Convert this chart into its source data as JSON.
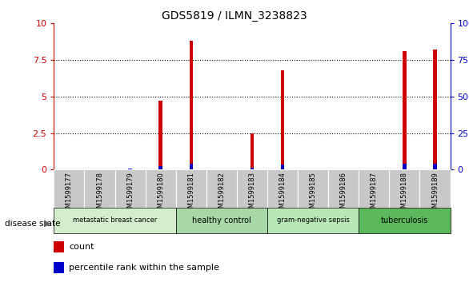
{
  "title": "GDS5819 / ILMN_3238823",
  "samples": [
    "GSM1599177",
    "GSM1599178",
    "GSM1599179",
    "GSM1599180",
    "GSM1599181",
    "GSM1599182",
    "GSM1599183",
    "GSM1599184",
    "GSM1599185",
    "GSM1599186",
    "GSM1599187",
    "GSM1599188",
    "GSM1599189"
  ],
  "count_values": [
    0.0,
    0.0,
    0.0,
    4.7,
    8.8,
    0.0,
    2.5,
    6.8,
    0.0,
    0.0,
    0.0,
    8.1,
    8.2
  ],
  "percentile_values": [
    0.0,
    0.45,
    0.5,
    2.5,
    4.0,
    0.0,
    1.35,
    3.25,
    0.0,
    0.2,
    0.0,
    3.8,
    3.9
  ],
  "bar_color": "#cc0000",
  "percentile_color": "#0000cc",
  "ylim_left": [
    0,
    10
  ],
  "ylim_right": [
    0,
    100
  ],
  "yticks_left": [
    0,
    2.5,
    5,
    7.5,
    10
  ],
  "ytick_labels_left": [
    "0",
    "2.5",
    "5",
    "7.5",
    "10"
  ],
  "yticks_right": [
    0,
    25,
    50,
    75,
    100
  ],
  "ytick_labels_right": [
    "0",
    "25",
    "50",
    "75",
    "100%"
  ],
  "groups": [
    {
      "label": "metastatic breast cancer",
      "start": 0,
      "end": 4,
      "color": "#d4edcc"
    },
    {
      "label": "healthy control",
      "start": 4,
      "end": 7,
      "color": "#a8d8a8"
    },
    {
      "label": "gram-negative sepsis",
      "start": 7,
      "end": 10,
      "color": "#b8e8b8"
    },
    {
      "label": "tuberculosis",
      "start": 10,
      "end": 13,
      "color": "#5cb85c"
    }
  ],
  "disease_state_label": "disease state",
  "legend_count_label": "count",
  "legend_percentile_label": "percentile rank within the sample",
  "bar_width": 0.12,
  "bg_color": "#ffffff",
  "plot_bg_color": "#ffffff",
  "tick_label_color_left": "#cc0000",
  "tick_label_color_right": "#0000cc",
  "sample_bg_color": "#c8c8c8"
}
